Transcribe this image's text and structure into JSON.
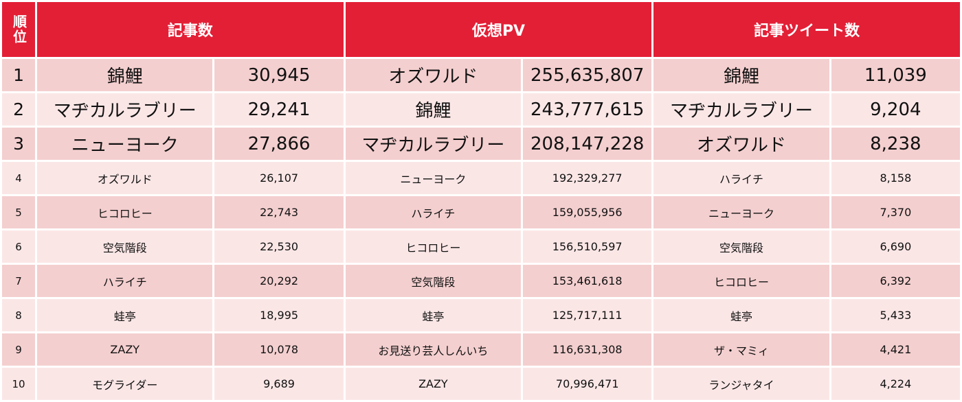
{
  "headers": {
    "rank": "順位",
    "articles": "記事数",
    "pv": "仮想PV",
    "tweets": "記事ツイート数"
  },
  "rows": [
    {
      "rank": "1",
      "art_name": "錦鯉",
      "art_value": "30,945",
      "pv_name": "オズワルド",
      "pv_value": "255,635,807",
      "tw_name": "錦鯉",
      "tw_value": "11,039"
    },
    {
      "rank": "2",
      "art_name": "マヂカルラブリー",
      "art_value": "29,241",
      "pv_name": "錦鯉",
      "pv_value": "243,777,615",
      "tw_name": "マヂカルラブリー",
      "tw_value": "9,204"
    },
    {
      "rank": "3",
      "art_name": "ニューヨーク",
      "art_value": "27,866",
      "pv_name": "マヂカルラブリー",
      "pv_value": "208,147,228",
      "tw_name": "オズワルド",
      "tw_value": "8,238"
    },
    {
      "rank": "4",
      "art_name": "オズワルド",
      "art_value": "26,107",
      "pv_name": "ニューヨーク",
      "pv_value": "192,329,277",
      "tw_name": "ハライチ",
      "tw_value": "8,158"
    },
    {
      "rank": "5",
      "art_name": "ヒコロヒー",
      "art_value": "22,743",
      "pv_name": "ハライチ",
      "pv_value": "159,055,956",
      "tw_name": "ニューヨーク",
      "tw_value": "7,370"
    },
    {
      "rank": "6",
      "art_name": "空気階段",
      "art_value": "22,530",
      "pv_name": "ヒコロヒー",
      "pv_value": "156,510,597",
      "tw_name": "空気階段",
      "tw_value": "6,690"
    },
    {
      "rank": "7",
      "art_name": "ハライチ",
      "art_value": "20,292",
      "pv_name": "空気階段",
      "pv_value": "153,461,618",
      "tw_name": "ヒコロヒー",
      "tw_value": "6,392"
    },
    {
      "rank": "8",
      "art_name": "蛙亭",
      "art_value": "18,995",
      "pv_name": "蛙亭",
      "pv_value": "125,717,111",
      "tw_name": "蛙亭",
      "tw_value": "5,433"
    },
    {
      "rank": "9",
      "art_name": "ZAZY",
      "art_value": "10,078",
      "pv_name": "お見送り芸人しんいち",
      "pv_value": "116,631,308",
      "tw_name": "ザ・マミィ",
      "tw_value": "4,421"
    },
    {
      "rank": "10",
      "art_name": "モグライダー",
      "art_value": "9,689",
      "pv_name": "ZAZY",
      "pv_value": "70,996,471",
      "tw_name": "ランジャタイ",
      "tw_value": "4,224"
    }
  ],
  "colors": {
    "header_red": "#e31f36",
    "row_dark": "#f4cfcf",
    "row_light": "#fbe6e6"
  }
}
